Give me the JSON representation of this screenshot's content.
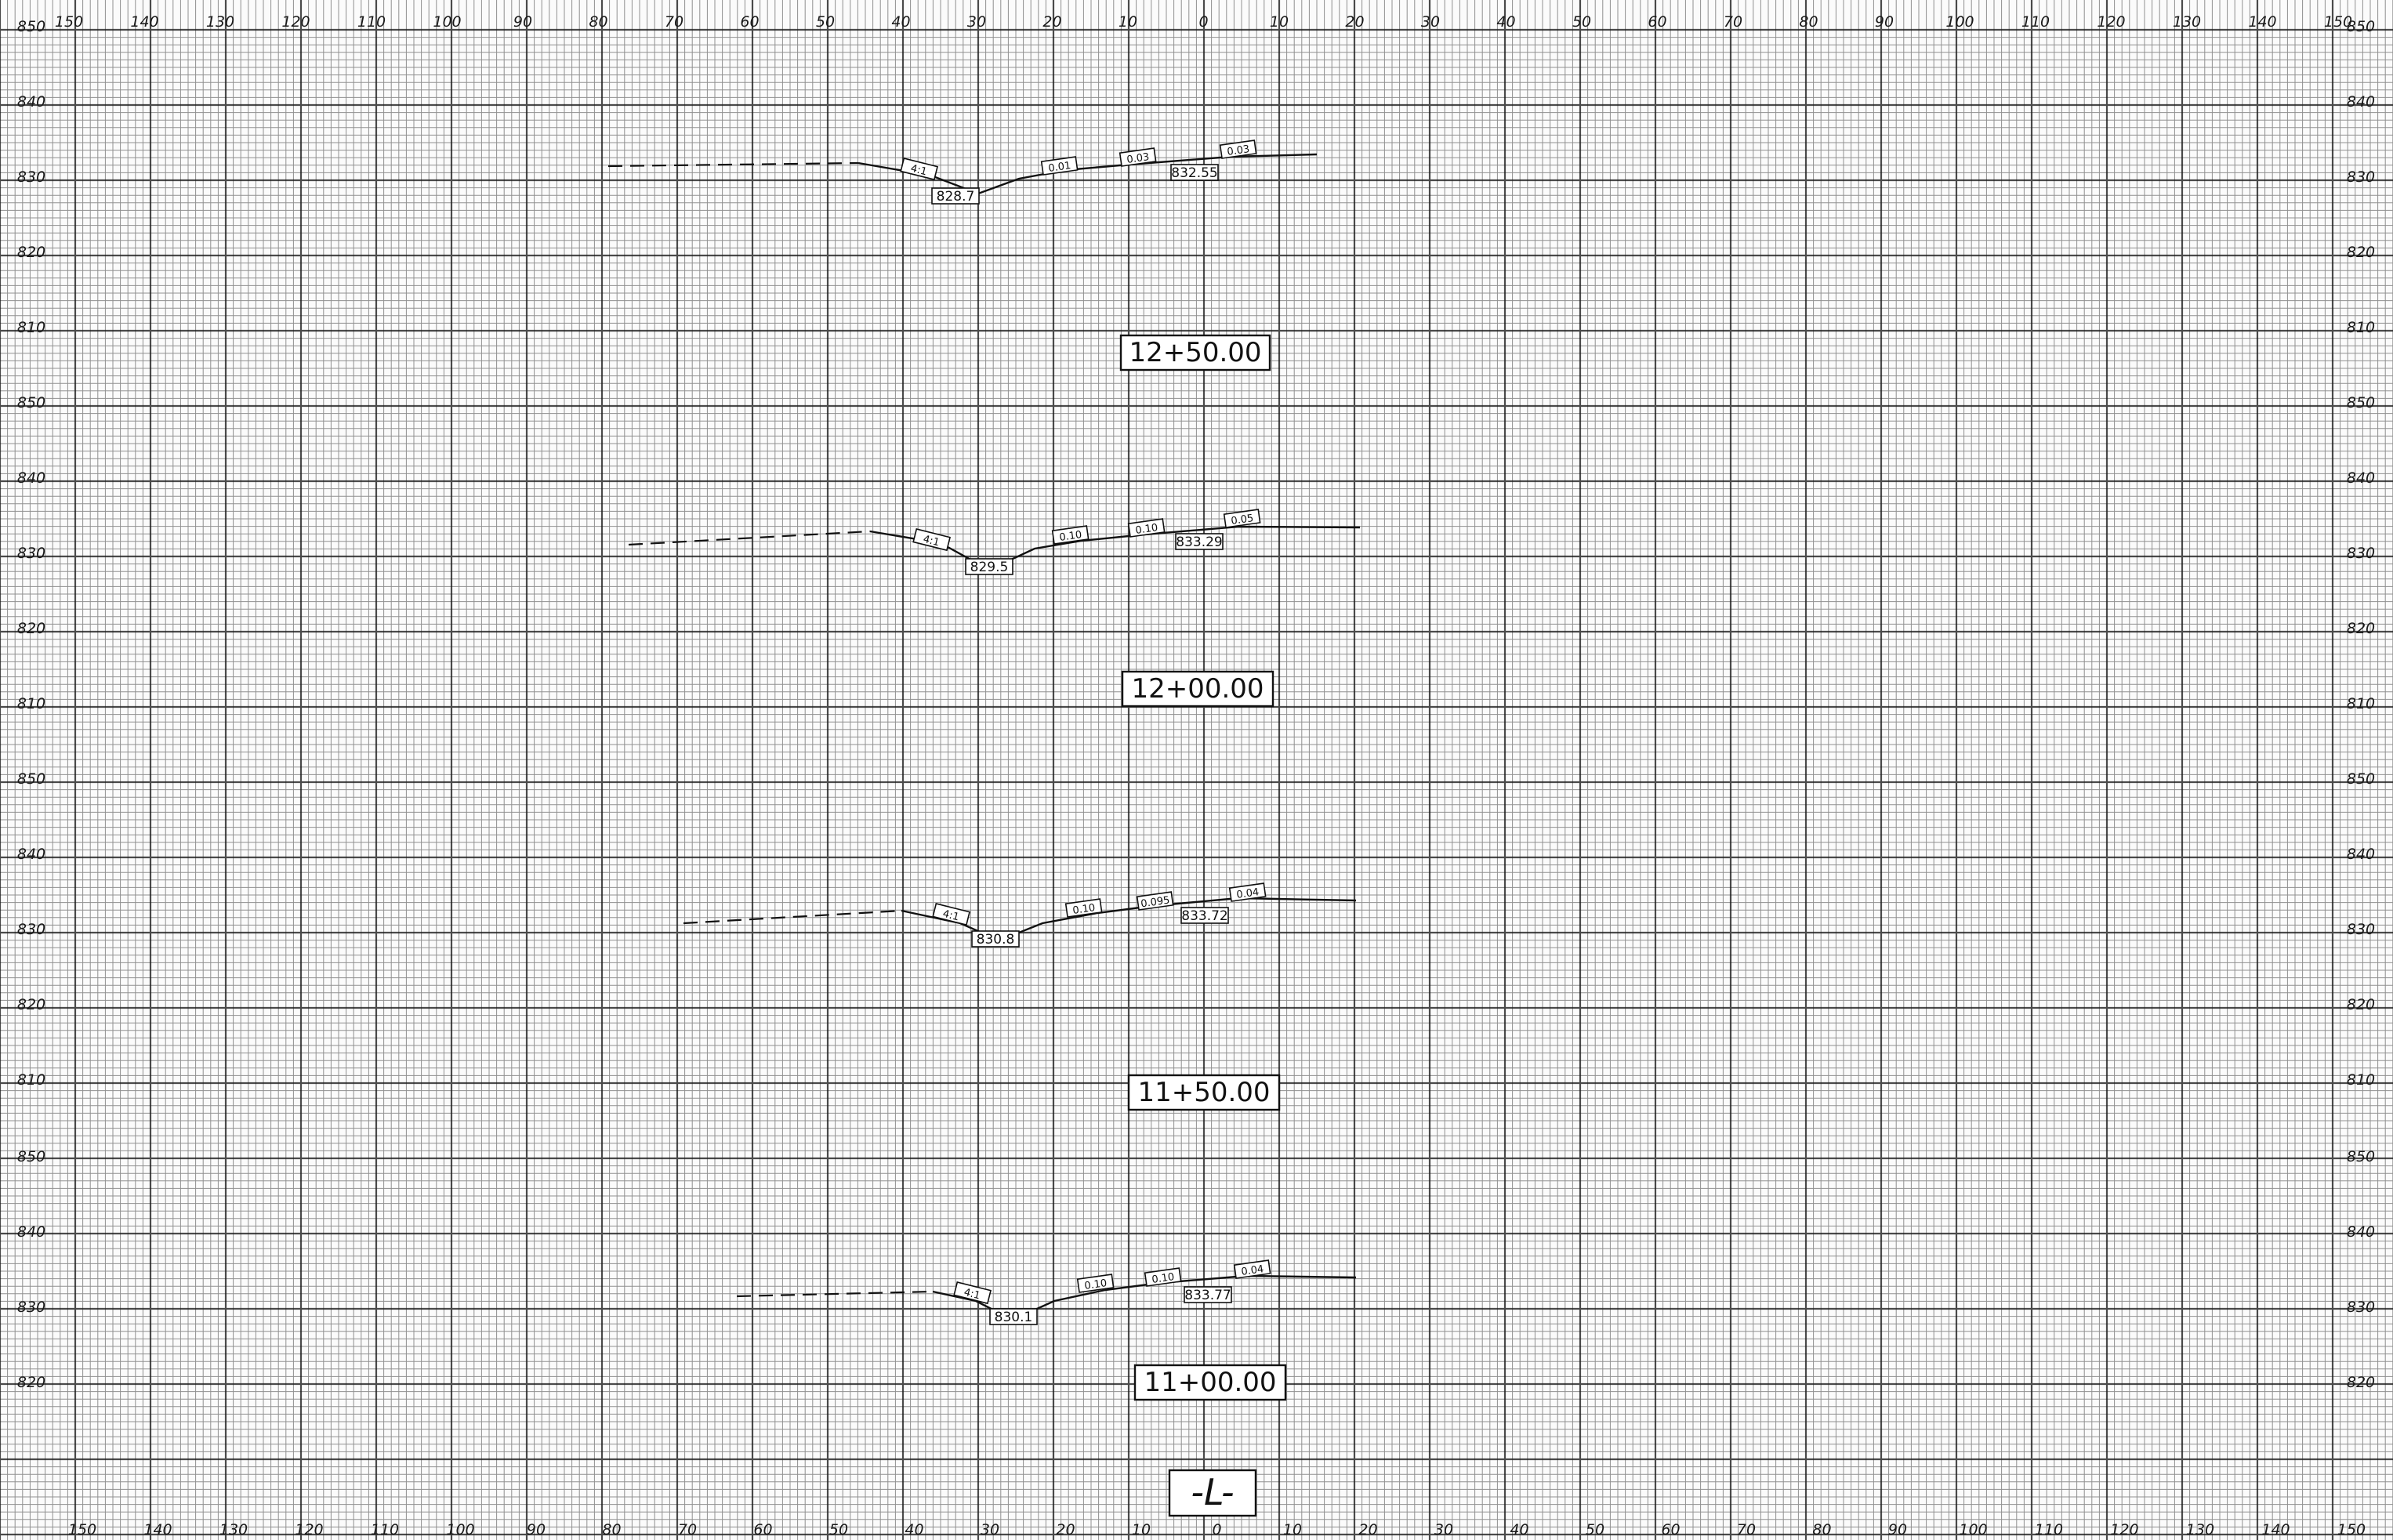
{
  "sheet": {
    "x_ticks_top": [
      "150",
      "140",
      "130",
      "120",
      "110",
      "100",
      "90",
      "80",
      "70",
      "60",
      "50",
      "40",
      "30",
      "20",
      "10",
      "0",
      "10",
      "20",
      "30",
      "40",
      "50",
      "60",
      "70",
      "80",
      "90",
      "100",
      "110",
      "120",
      "130",
      "140",
      "150"
    ],
    "x_ticks_bottom": [
      "150",
      "140",
      "130",
      "120",
      "110",
      "100",
      "90",
      "80",
      "70",
      "60",
      "50",
      "40",
      "30",
      "20",
      "10",
      "0",
      "10",
      "20",
      "30",
      "40",
      "50",
      "60",
      "70",
      "80",
      "90",
      "100",
      "110",
      "120",
      "130",
      "140",
      "150"
    ],
    "alignment_label": "-L-"
  },
  "sections": [
    {
      "station": "12+50.00",
      "y_ticks_left": [
        "850",
        "840",
        "830",
        "820",
        "810"
      ],
      "y_ticks_right": [
        "850",
        "840",
        "830",
        "820",
        "810"
      ],
      "slopes": [
        "4:1",
        "0.01",
        "0.03",
        "0.03"
      ],
      "elevations": [
        "828.7",
        "832.55"
      ]
    },
    {
      "station": "12+00.00",
      "y_ticks_left": [
        "850",
        "840",
        "830",
        "820",
        "810"
      ],
      "y_ticks_right": [
        "850",
        "840",
        "830",
        "820",
        "810"
      ],
      "slopes": [
        "4:1",
        "0.10",
        "0.10",
        "0.05"
      ],
      "elevations": [
        "829.5",
        "833.29"
      ]
    },
    {
      "station": "11+50.00",
      "y_ticks_left": [
        "850",
        "840",
        "830",
        "820",
        "810"
      ],
      "y_ticks_right": [
        "850",
        "840",
        "830",
        "820",
        "810"
      ],
      "slopes": [
        "4:1",
        "0.10",
        "0.095",
        "0.04"
      ],
      "elevations": [
        "830.8",
        "833.72"
      ]
    },
    {
      "station": "11+00.00",
      "y_ticks_left": [
        "850",
        "840",
        "830",
        "820"
      ],
      "y_ticks_right": [
        "850",
        "840",
        "830",
        "820"
      ],
      "slopes": [
        "4:1",
        "0.10",
        "0.10",
        "0.04"
      ],
      "elevations": [
        "830.1",
        "833.77"
      ]
    }
  ]
}
